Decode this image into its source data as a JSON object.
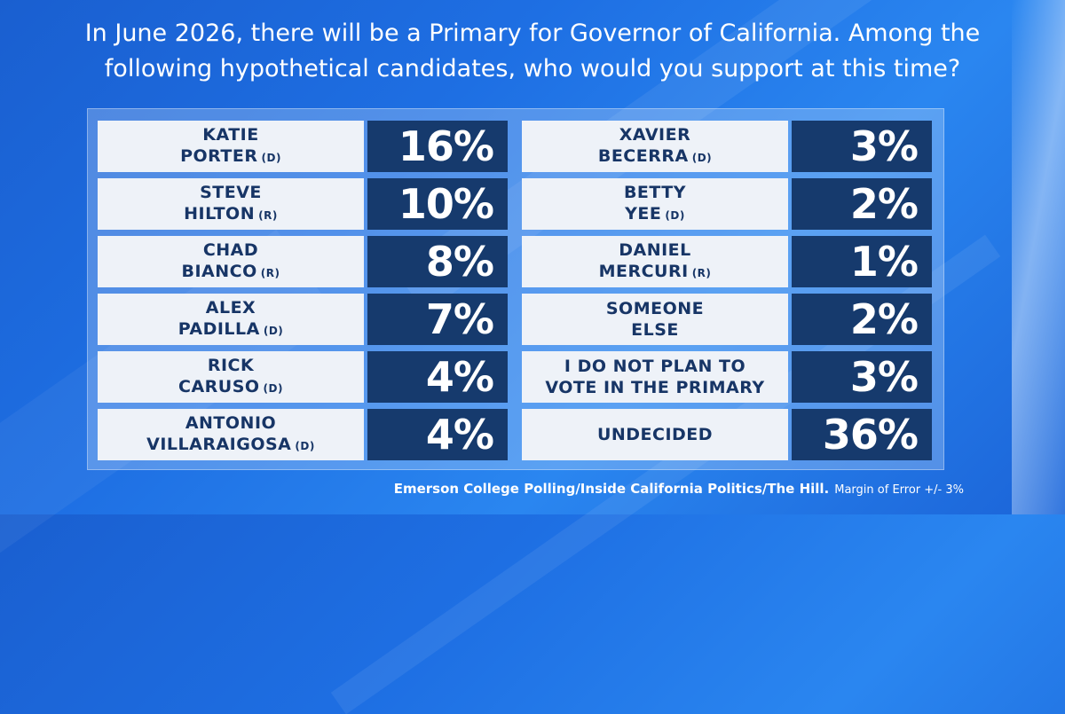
{
  "colors": {
    "background": "#1e6fe3",
    "name_cell": "#eef2f8",
    "name_text": "#173566",
    "value_cell": "#163a6d",
    "value_text": "#ffffff"
  },
  "question": {
    "line1": "In June 2026, there will be a Primary for Governor of California. Among the",
    "line2": "following hypothetical candidates, who would you support at this time?"
  },
  "footer": {
    "source": "Emerson College Polling/Inside California Politics/The Hill.",
    "margin": "Margin of Error +/- 3%"
  },
  "chart_data": {
    "type": "table",
    "unit": "%",
    "rows": [
      {
        "line1": "KATIE",
        "line2": "PORTER",
        "party": "(D)",
        "value": 16,
        "label": "16%"
      },
      {
        "line1": "STEVE",
        "line2": "HILTON",
        "party": "(R)",
        "value": 10,
        "label": "10%"
      },
      {
        "line1": "CHAD",
        "line2": "BIANCO",
        "party": "(R)",
        "value": 8,
        "label": "8%"
      },
      {
        "line1": "ALEX",
        "line2": "PADILLA",
        "party": "(D)",
        "value": 7,
        "label": "7%"
      },
      {
        "line1": "RICK",
        "line2": "CARUSO",
        "party": "(D)",
        "value": 4,
        "label": "4%"
      },
      {
        "line1": "ANTONIO",
        "line2": "VILLARAIGOSA",
        "party": "(D)",
        "value": 4,
        "label": "4%"
      },
      {
        "line1": "XAVIER",
        "line2": "BECERRA",
        "party": "(D)",
        "value": 3,
        "label": "3%"
      },
      {
        "line1": "BETTY",
        "line2": "YEE",
        "party": "(D)",
        "value": 2,
        "label": "2%"
      },
      {
        "line1": "DANIEL",
        "line2": "MERCURI",
        "party": "(R)",
        "value": 1,
        "label": "1%"
      },
      {
        "line1": "SOMEONE",
        "line2": "ELSE",
        "party": "",
        "value": 2,
        "label": "2%"
      },
      {
        "line1": "I DO NOT PLAN TO",
        "line2": "VOTE IN THE PRIMARY",
        "party": "",
        "value": 3,
        "label": "3%"
      },
      {
        "line1": "UNDECIDED",
        "line2": "",
        "party": "",
        "value": 36,
        "label": "36%"
      }
    ]
  }
}
